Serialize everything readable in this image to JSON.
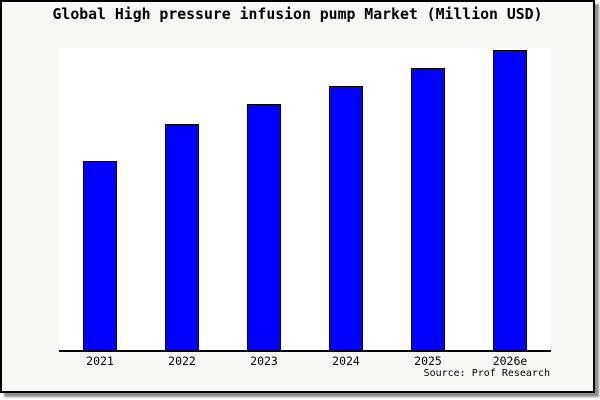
{
  "title": "Global High pressure infusion pump Market (Million USD)",
  "source_label": "Source: Prof Research",
  "colors": {
    "bar_fill": "#0000ff",
    "bar_border": "#000000",
    "axis": "#000000",
    "frame_border": "#000000",
    "page_background": "#f8f8f6",
    "plot_background": "#ffffff",
    "shadow": "#8e8e8e",
    "text": "#000000"
  },
  "chart_data": {
    "type": "bar",
    "title": "Global High pressure infusion pump Market (Million USD)",
    "categories": [
      "2021",
      "2022",
      "2023",
      "2024",
      "2025",
      "2026e"
    ],
    "values": [
      189,
      226,
      246,
      264,
      282,
      300
    ],
    "values_note": "no y-axis scale shown in image; values estimated as relative bar heights in pixels",
    "xlabel": "",
    "ylabel": "",
    "ylim": [
      0,
      302
    ],
    "grid": false,
    "legend": null,
    "bar_color": "#0000ff",
    "source": "Source: Prof Research"
  }
}
